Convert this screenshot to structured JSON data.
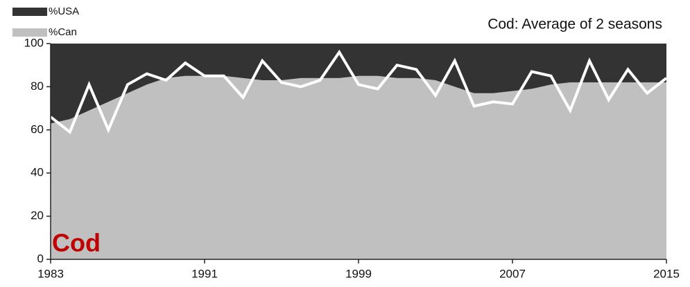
{
  "chart_data": {
    "type": "area",
    "title": "Cod: Average of 2 seasons",
    "annotation": "Cod",
    "x": [
      1983,
      1984,
      1985,
      1986,
      1987,
      1988,
      1989,
      1990,
      1991,
      1992,
      1993,
      1994,
      1995,
      1996,
      1997,
      1998,
      1999,
      2000,
      2001,
      2002,
      2003,
      2004,
      2005,
      2006,
      2007,
      2008,
      2009,
      2010,
      2011,
      2012,
      2013,
      2014,
      2015
    ],
    "series": [
      {
        "name": "%Can",
        "color": "#c0c0c0",
        "stacked": true,
        "values": [
          63,
          65,
          69,
          73,
          77,
          81,
          84,
          85,
          85,
          85,
          84,
          83,
          83,
          84,
          84,
          84,
          85,
          85,
          84,
          84,
          83,
          80,
          77,
          77,
          78,
          79,
          81,
          82,
          82,
          82,
          82,
          82,
          82
        ]
      },
      {
        "name": "%USA",
        "color": "#333333",
        "stacked": true,
        "values": [
          37,
          35,
          31,
          27,
          23,
          19,
          16,
          15,
          15,
          15,
          16,
          17,
          17,
          16,
          16,
          16,
          15,
          15,
          16,
          16,
          17,
          20,
          23,
          23,
          22,
          21,
          19,
          18,
          18,
          18,
          18,
          18,
          18
        ]
      },
      {
        "type": "line",
        "color": "#ffffff",
        "values": [
          66,
          59,
          81,
          60,
          81,
          86,
          83,
          91,
          85,
          85,
          75,
          92,
          82,
          80,
          83,
          96,
          81,
          79,
          90,
          88,
          76,
          92,
          71,
          73,
          72,
          87,
          85,
          69,
          92,
          74,
          88,
          77,
          84
        ]
      }
    ],
    "xlim": [
      1983,
      2015
    ],
    "xticks": [
      1983,
      1991,
      1999,
      2007,
      2015
    ],
    "ylim": [
      0,
      100
    ],
    "yticks": [
      0,
      20,
      40,
      60,
      80,
      100
    ],
    "legend": "top-left"
  }
}
